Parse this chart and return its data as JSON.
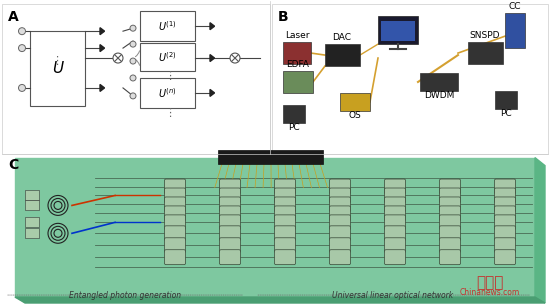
{
  "bg_color": "#f5f5f5",
  "panel_a_label": "A",
  "panel_b_label": "B",
  "panel_c_label": "C",
  "panel_a_U": "U",
  "panel_a_U1": "$U^{(1)}$",
  "panel_a_U2": "$U^{(2)}$",
  "panel_a_Un": "$U^{(n)}$",
  "panel_b_labels": [
    "Laser",
    "EDFA",
    "DAC",
    "OS",
    "CC",
    "SNSPD",
    "DWDM",
    "PC",
    "PC"
  ],
  "bottom_label_left": "Entangled photon generation",
  "bottom_label_right": "Universal linear optical network",
  "watermark": "中新网",
  "watermark2": "Chinanews.com",
  "chip_color": "#7ec8a0",
  "chip_color2": "#5ab585",
  "line_color": "#d4a030"
}
